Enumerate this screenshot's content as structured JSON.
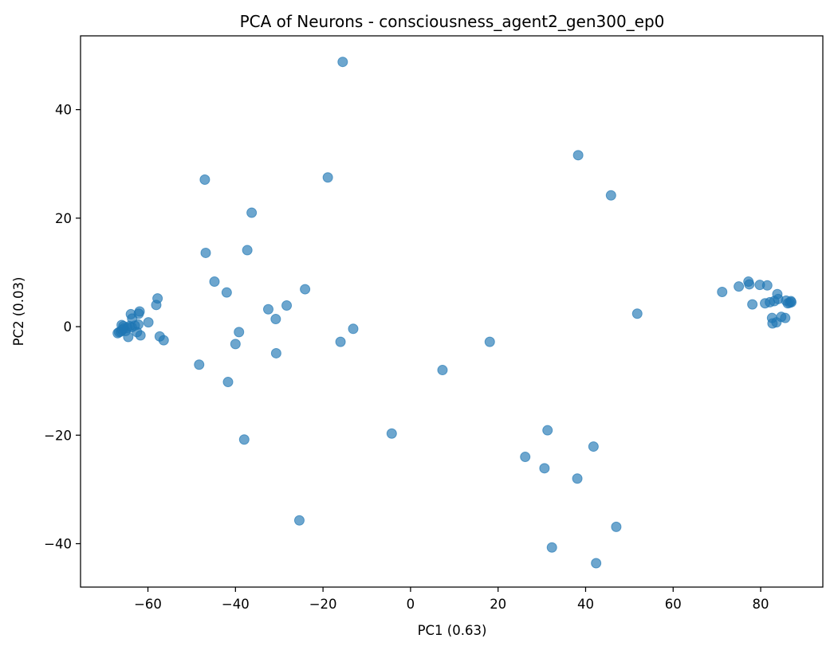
{
  "chart_data": {
    "type": "scatter",
    "title": "PCA of Neurons - consciousness_agent2_gen300_ep0",
    "xlabel": "PC1 (0.63)",
    "ylabel": "PC2 (0.03)",
    "xlim": [
      -75.4,
      94.2
    ],
    "ylim": [
      -48.0,
      53.6
    ],
    "x_ticks": [
      -60,
      -40,
      -20,
      0,
      20,
      40,
      60,
      80
    ],
    "x_tick_labels": [
      "−60",
      "−40",
      "−20",
      "0",
      "20",
      "40",
      "60",
      "80"
    ],
    "y_ticks": [
      -40,
      -20,
      0,
      20,
      40
    ],
    "y_tick_labels": [
      "−40",
      "−20",
      "0",
      "20",
      "40"
    ],
    "grid": false,
    "legend": "none",
    "marker_color": "#1f77b4",
    "marker_alpha": 0.65,
    "series": [
      {
        "points": [
          [
            -66.9,
            -1.2
          ],
          [
            -66.6,
            -1.0
          ],
          [
            -66.2,
            -0.9
          ],
          [
            -65.9,
            -0.6
          ],
          [
            -65.5,
            -0.3
          ],
          [
            -65.1,
            -0.8
          ],
          [
            -64.7,
            -0.2
          ],
          [
            -64.2,
            0.1
          ],
          [
            -63.7,
            -0.1
          ],
          [
            -66.0,
            0.3
          ],
          [
            -65.6,
            0.1
          ],
          [
            -64.5,
            -1.9
          ],
          [
            -63.9,
            2.3
          ],
          [
            -63.6,
            1.5
          ],
          [
            -63.0,
            0.2
          ],
          [
            -62.5,
            -1.0
          ],
          [
            -62.2,
            0.4
          ],
          [
            -62.1,
            2.4
          ],
          [
            -61.9,
            2.8
          ],
          [
            -61.7,
            -1.6
          ],
          [
            -59.9,
            0.8
          ],
          [
            -58.1,
            4.0
          ],
          [
            -57.8,
            5.2
          ],
          [
            -57.3,
            -1.8
          ],
          [
            -56.4,
            -2.5
          ],
          [
            -48.3,
            -7.0
          ],
          [
            -47.0,
            27.1
          ],
          [
            -46.8,
            13.6
          ],
          [
            -44.8,
            8.3
          ],
          [
            -42.0,
            6.3
          ],
          [
            -41.7,
            -10.2
          ],
          [
            -40.0,
            -3.2
          ],
          [
            -39.2,
            -1.0
          ],
          [
            -38.0,
            -20.8
          ],
          [
            -37.3,
            14.1
          ],
          [
            -36.3,
            21.0
          ],
          [
            -32.5,
            3.2
          ],
          [
            -30.8,
            1.4
          ],
          [
            -30.7,
            -4.9
          ],
          [
            -28.3,
            3.9
          ],
          [
            -25.4,
            -35.7
          ],
          [
            -24.1,
            6.9
          ],
          [
            -18.9,
            27.5
          ],
          [
            -16.0,
            -2.8
          ],
          [
            -15.5,
            48.8
          ],
          [
            -13.1,
            -0.4
          ],
          [
            -4.3,
            -19.7
          ],
          [
            7.3,
            -8.0
          ],
          [
            18.1,
            -2.8
          ],
          [
            26.2,
            -24.0
          ],
          [
            30.6,
            -26.1
          ],
          [
            31.3,
            -19.1
          ],
          [
            32.3,
            -40.7
          ],
          [
            38.1,
            -28.0
          ],
          [
            38.3,
            31.6
          ],
          [
            41.8,
            -22.1
          ],
          [
            42.4,
            -43.6
          ],
          [
            45.8,
            24.2
          ],
          [
            47.0,
            -36.9
          ],
          [
            51.8,
            2.4
          ],
          [
            71.2,
            6.4
          ],
          [
            75.0,
            7.4
          ],
          [
            77.2,
            8.3
          ],
          [
            77.4,
            7.8
          ],
          [
            78.1,
            4.1
          ],
          [
            79.8,
            7.7
          ],
          [
            81.0,
            4.3
          ],
          [
            81.5,
            7.6
          ],
          [
            82.1,
            4.5
          ],
          [
            82.6,
            1.6
          ],
          [
            82.7,
            0.6
          ],
          [
            83.1,
            4.7
          ],
          [
            83.6,
            0.8
          ],
          [
            83.8,
            6.0
          ],
          [
            84.0,
            5.1
          ],
          [
            84.7,
            1.8
          ],
          [
            85.6,
            1.6
          ],
          [
            85.8,
            4.8
          ],
          [
            86.2,
            4.3
          ],
          [
            86.6,
            4.4
          ],
          [
            86.9,
            4.7
          ],
          [
            87.0,
            4.5
          ]
        ]
      }
    ]
  }
}
